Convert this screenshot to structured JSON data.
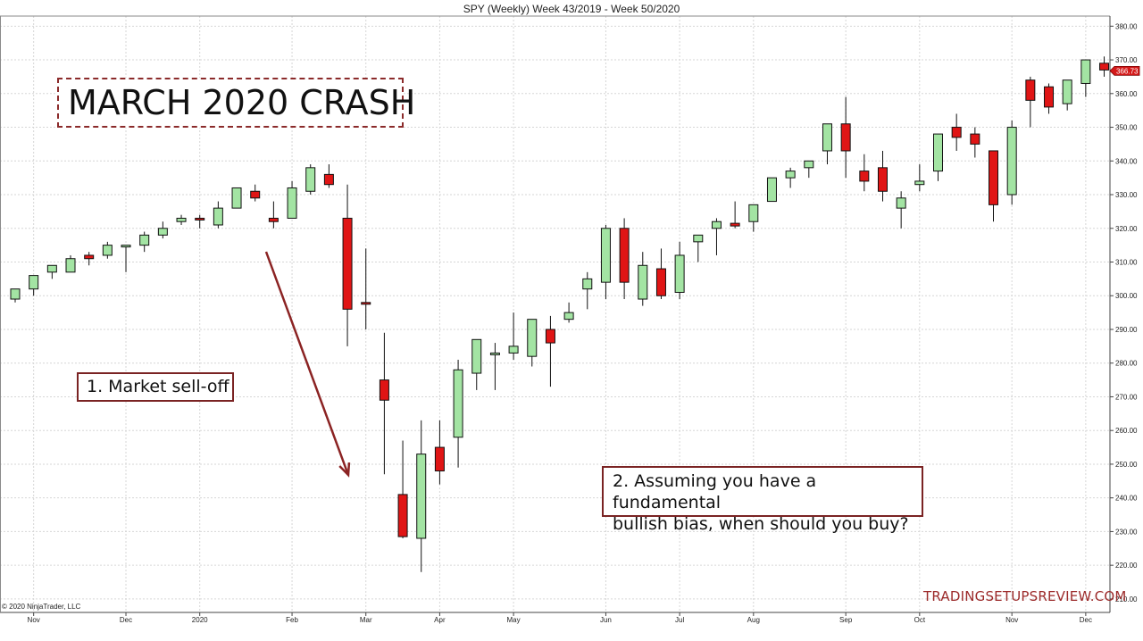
{
  "header": {
    "title": "SPY (Weekly)  Week 43/2019 - Week 50/2020"
  },
  "annotations": {
    "title_box": "MARCH 2020 CRASH",
    "box1": "1. Market sell-off",
    "box2_line1": "2. Assuming you have a fundamental",
    "box2_line2": "bullish bias, when should you buy?"
  },
  "footer": {
    "copyright": "© 2020 NinjaTrader, LLC",
    "watermark": "TRADINGSETUPSREVIEW.COM"
  },
  "colors": {
    "bull": "#a3e4a3",
    "bear": "#e01515",
    "arrow": "#8b2323",
    "last_price_bg": "#d41a1a"
  },
  "chart_data": {
    "type": "candlestick",
    "title": "SPY (Weekly)  Week 43/2019 - Week 50/2020",
    "ylim": [
      206,
      383
    ],
    "y_ticks": [
      "210.00",
      "220.00",
      "230.00",
      "240.00",
      "250.00",
      "260.00",
      "270.00",
      "280.00",
      "290.00",
      "300.00",
      "310.00",
      "320.00",
      "330.00",
      "340.00",
      "350.00",
      "360.00",
      "370.00",
      "380.00"
    ],
    "x_labels": [
      {
        "label": "Nov",
        "index": 1
      },
      {
        "label": "Dec",
        "index": 6
      },
      {
        "label": "2020",
        "index": 10
      },
      {
        "label": "Feb",
        "index": 15
      },
      {
        "label": "Mar",
        "index": 19
      },
      {
        "label": "Apr",
        "index": 23
      },
      {
        "label": "May",
        "index": 27
      },
      {
        "label": "Jun",
        "index": 32
      },
      {
        "label": "Jul",
        "index": 36
      },
      {
        "label": "Aug",
        "index": 40
      },
      {
        "label": "Sep",
        "index": 45
      },
      {
        "label": "Oct",
        "index": 49
      },
      {
        "label": "Nov",
        "index": 54
      },
      {
        "label": "Dec",
        "index": 58
      }
    ],
    "last_price": "366.73",
    "candles": [
      {
        "o": 299,
        "h": 302,
        "l": 298,
        "c": 302
      },
      {
        "o": 302,
        "h": 306,
        "l": 300,
        "c": 306
      },
      {
        "o": 307,
        "h": 309,
        "l": 305,
        "c": 309
      },
      {
        "o": 307,
        "h": 312,
        "l": 307,
        "c": 311
      },
      {
        "o": 312,
        "h": 313,
        "l": 309,
        "c": 311
      },
      {
        "o": 312,
        "h": 316,
        "l": 311,
        "c": 315
      },
      {
        "o": 315,
        "h": 315,
        "l": 307,
        "c": 315
      },
      {
        "o": 315,
        "h": 319,
        "l": 313,
        "c": 318
      },
      {
        "o": 318,
        "h": 322,
        "l": 317,
        "c": 320
      },
      {
        "o": 322,
        "h": 324,
        "l": 321,
        "c": 323
      },
      {
        "o": 323,
        "h": 324,
        "l": 320,
        "c": 322.5
      },
      {
        "o": 321,
        "h": 328,
        "l": 320,
        "c": 326
      },
      {
        "o": 326,
        "h": 332,
        "l": 326,
        "c": 332
      },
      {
        "o": 331,
        "h": 333,
        "l": 328,
        "c": 329
      },
      {
        "o": 323,
        "h": 328,
        "l": 320,
        "c": 322
      },
      {
        "o": 323,
        "h": 334,
        "l": 323,
        "c": 332
      },
      {
        "o": 331,
        "h": 339,
        "l": 330,
        "c": 338
      },
      {
        "o": 336,
        "h": 339,
        "l": 332,
        "c": 333
      },
      {
        "o": 323,
        "h": 333,
        "l": 285,
        "c": 296
      },
      {
        "o": 298,
        "h": 314,
        "l": 290,
        "c": 297.5
      },
      {
        "o": 275,
        "h": 289,
        "l": 247,
        "c": 269
      },
      {
        "o": 241,
        "h": 257,
        "l": 228,
        "c": 228.5
      },
      {
        "o": 228,
        "h": 263,
        "l": 218,
        "c": 253
      },
      {
        "o": 255,
        "h": 263,
        "l": 244,
        "c": 248
      },
      {
        "o": 258,
        "h": 281,
        "l": 249,
        "c": 278
      },
      {
        "o": 277,
        "h": 287,
        "l": 272,
        "c": 287
      },
      {
        "o": 283,
        "h": 286,
        "l": 272,
        "c": 283
      },
      {
        "o": 283,
        "h": 295,
        "l": 281,
        "c": 285
      },
      {
        "o": 282,
        "h": 293,
        "l": 279,
        "c": 293
      },
      {
        "o": 290,
        "h": 294,
        "l": 273,
        "c": 286
      },
      {
        "o": 293,
        "h": 298,
        "l": 292,
        "c": 295
      },
      {
        "o": 302,
        "h": 307,
        "l": 296,
        "c": 305
      },
      {
        "o": 304,
        "h": 321,
        "l": 299,
        "c": 320
      },
      {
        "o": 320,
        "h": 323,
        "l": 299,
        "c": 304
      },
      {
        "o": 299,
        "h": 313,
        "l": 297,
        "c": 309
      },
      {
        "o": 308,
        "h": 314,
        "l": 299,
        "c": 300
      },
      {
        "o": 301,
        "h": 316,
        "l": 299,
        "c": 312
      },
      {
        "o": 316,
        "h": 318,
        "l": 310,
        "c": 318
      },
      {
        "o": 320,
        "h": 323,
        "l": 312,
        "c": 322
      },
      {
        "o": 321.5,
        "h": 328,
        "l": 320,
        "c": 320.7
      },
      {
        "o": 322,
        "h": 327,
        "l": 319,
        "c": 327
      },
      {
        "o": 328,
        "h": 335,
        "l": 328,
        "c": 335
      },
      {
        "o": 335,
        "h": 338,
        "l": 332,
        "c": 337
      },
      {
        "o": 338,
        "h": 340,
        "l": 335,
        "c": 340
      },
      {
        "o": 343,
        "h": 351,
        "l": 339,
        "c": 351
      },
      {
        "o": 351,
        "h": 359,
        "l": 335,
        "c": 343
      },
      {
        "o": 337,
        "h": 342,
        "l": 331,
        "c": 334
      },
      {
        "o": 338,
        "h": 343,
        "l": 328,
        "c": 331
      },
      {
        "o": 326,
        "h": 331,
        "l": 320,
        "c": 329
      },
      {
        "o": 333,
        "h": 339,
        "l": 331,
        "c": 334
      },
      {
        "o": 337,
        "h": 348,
        "l": 334,
        "c": 348
      },
      {
        "o": 350,
        "h": 354,
        "l": 343,
        "c": 347
      },
      {
        "o": 348,
        "h": 350,
        "l": 341,
        "c": 345
      },
      {
        "o": 343,
        "h": 343,
        "l": 322,
        "c": 327
      },
      {
        "o": 330,
        "h": 352,
        "l": 327,
        "c": 350
      },
      {
        "o": 364,
        "h": 365,
        "l": 350,
        "c": 358
      },
      {
        "o": 362,
        "h": 363,
        "l": 354,
        "c": 356
      },
      {
        "o": 357,
        "h": 364,
        "l": 355,
        "c": 364
      },
      {
        "o": 363,
        "h": 370,
        "l": 359,
        "c": 370
      },
      {
        "o": 369,
        "h": 371,
        "l": 365,
        "c": 367
      }
    ]
  }
}
